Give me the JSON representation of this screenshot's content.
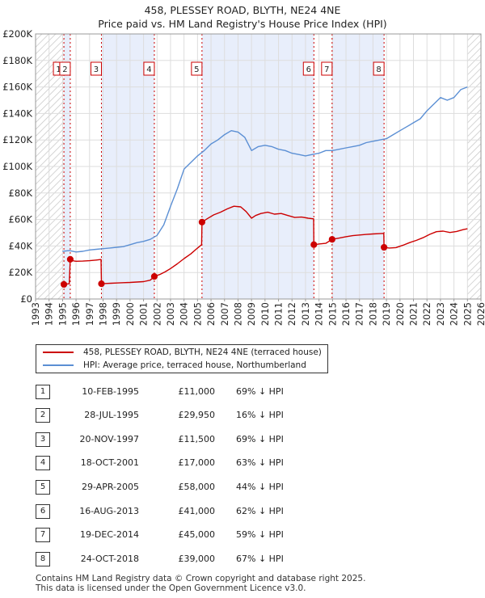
{
  "chart_data": {
    "type": "line",
    "title": "458, PLESSEY ROAD, BLYTH, NE24 4NE",
    "subtitle": "Price paid vs. HM Land Registry's House Price Index (HPI)",
    "xlabel": "",
    "ylabel": "",
    "xlim": [
      1993,
      2026
    ],
    "ylim": [
      0,
      200000
    ],
    "x_ticks": [
      "1993",
      "1994",
      "1995",
      "1996",
      "1997",
      "1998",
      "1999",
      "2000",
      "2001",
      "2002",
      "2003",
      "2004",
      "2005",
      "2006",
      "2007",
      "2008",
      "2009",
      "2010",
      "2011",
      "2012",
      "2013",
      "2014",
      "2015",
      "2016",
      "2017",
      "2018",
      "2019",
      "2020",
      "2021",
      "2022",
      "2023",
      "2024",
      "2025",
      "2026"
    ],
    "y_ticks": [
      {
        "value": 0,
        "label": "£0"
      },
      {
        "value": 20000,
        "label": "£20K"
      },
      {
        "value": 40000,
        "label": "£40K"
      },
      {
        "value": 60000,
        "label": "£60K"
      },
      {
        "value": 80000,
        "label": "£80K"
      },
      {
        "value": 100000,
        "label": "£100K"
      },
      {
        "value": 120000,
        "label": "£120K"
      },
      {
        "value": 140000,
        "label": "£140K"
      },
      {
        "value": 160000,
        "label": "£160K"
      },
      {
        "value": 180000,
        "label": "£180K"
      },
      {
        "value": 200000,
        "label": "£200K"
      }
    ],
    "hatched_ranges": [
      [
        1993,
        1995.1
      ],
      [
        2025.0,
        2026
      ]
    ],
    "highlight_ranges": [
      [
        1995.1,
        1995.57
      ],
      [
        1997.88,
        2001.8
      ],
      [
        2005.33,
        2013.62
      ],
      [
        2014.97,
        2018.82
      ]
    ],
    "series": [
      {
        "name": "458, PLESSEY ROAD, BLYTH, NE24 4NE (terraced house)",
        "color": "#cc0000",
        "x": [
          1995.1,
          1995.3,
          1995.5,
          1995.57,
          1995.8,
          1996.0,
          1996.5,
          1997.0,
          1997.5,
          1997.85,
          1997.88,
          1998.2,
          1998.6,
          1999.0,
          1999.5,
          2000.0,
          2000.5,
          2001.0,
          2001.5,
          2001.8,
          2002.2,
          2002.6,
          2003.0,
          2003.5,
          2004.0,
          2004.5,
          2005.0,
          2005.3,
          2005.33,
          2005.7,
          2006.2,
          2006.7,
          2007.2,
          2007.7,
          2008.2,
          2008.6,
          2009.0,
          2009.3,
          2009.7,
          2010.2,
          2010.7,
          2011.2,
          2011.7,
          2012.2,
          2012.7,
          2013.2,
          2013.6,
          2013.62,
          2014.0,
          2014.5,
          2014.97,
          2015.5,
          2016.0,
          2016.5,
          2017.0,
          2017.5,
          2018.0,
          2018.5,
          2018.8,
          2018.82,
          2019.2,
          2019.7,
          2020.2,
          2020.7,
          2021.2,
          2021.7,
          2022.2,
          2022.7,
          2023.2,
          2023.7,
          2024.2,
          2024.7,
          2025.0
        ],
        "values": [
          11000,
          11200,
          11500,
          29950,
          28800,
          28500,
          28600,
          28900,
          29400,
          29800,
          11500,
          11700,
          11900,
          12100,
          12300,
          12500,
          12800,
          13100,
          14200,
          17000,
          18500,
          20500,
          23000,
          26500,
          30500,
          34000,
          38500,
          41000,
          58000,
          60500,
          63500,
          65500,
          68000,
          70000,
          69500,
          66000,
          61000,
          63000,
          64500,
          65500,
          64000,
          64500,
          63000,
          61500,
          61800,
          61000,
          60500,
          41000,
          41500,
          42000,
          45000,
          46000,
          47000,
          47800,
          48300,
          48700,
          49100,
          49300,
          49500,
          39000,
          38500,
          38800,
          40500,
          42500,
          44200,
          46200,
          48800,
          50800,
          51200,
          50200,
          51000,
          52400,
          53000
        ]
      },
      {
        "name": "HPI: Average price, terraced house, Northumberland",
        "color": "#5b8fd4",
        "x": [
          1995.0,
          1995.5,
          1996.0,
          1996.5,
          1997.0,
          1997.5,
          1998.0,
          1998.5,
          1999.0,
          1999.5,
          2000.0,
          2000.5,
          2001.0,
          2001.5,
          2002.0,
          2002.5,
          2003.0,
          2003.5,
          2004.0,
          2004.5,
          2005.0,
          2005.5,
          2006.0,
          2006.5,
          2007.0,
          2007.5,
          2008.0,
          2008.5,
          2009.0,
          2009.5,
          2010.0,
          2010.5,
          2011.0,
          2011.5,
          2012.0,
          2012.5,
          2013.0,
          2013.5,
          2014.0,
          2014.5,
          2015.0,
          2015.5,
          2016.0,
          2016.5,
          2017.0,
          2017.5,
          2018.0,
          2018.5,
          2019.0,
          2019.5,
          2020.0,
          2020.5,
          2021.0,
          2021.5,
          2022.0,
          2022.5,
          2023.0,
          2023.5,
          2024.0,
          2024.5,
          2025.0
        ],
        "values": [
          36000,
          36500,
          35500,
          36000,
          37000,
          37500,
          38000,
          38500,
          39000,
          39500,
          41000,
          42500,
          43500,
          45000,
          48000,
          56000,
          70000,
          83000,
          98000,
          103000,
          108000,
          112000,
          117000,
          120000,
          124000,
          127000,
          126000,
          122000,
          112000,
          115000,
          116000,
          115000,
          113000,
          112000,
          110000,
          109000,
          108000,
          109000,
          110000,
          112000,
          112000,
          113000,
          114000,
          115000,
          116000,
          118000,
          119000,
          120000,
          121000,
          124000,
          127000,
          130000,
          133000,
          136000,
          142000,
          147000,
          152000,
          150000,
          152000,
          158000,
          160000
        ]
      }
    ],
    "sale_markers": [
      {
        "label": "1",
        "x": 1995.1,
        "y": 11000
      },
      {
        "label": "2",
        "x": 1995.57,
        "y": 29950
      },
      {
        "label": "3",
        "x": 1997.88,
        "y": 11500
      },
      {
        "label": "4",
        "x": 2001.8,
        "y": 17000
      },
      {
        "label": "5",
        "x": 2005.33,
        "y": 58000
      },
      {
        "label": "6",
        "x": 2013.62,
        "y": 41000
      },
      {
        "label": "7",
        "x": 2014.97,
        "y": 45000
      },
      {
        "label": "8",
        "x": 2018.82,
        "y": 39000
      }
    ],
    "legend": [
      {
        "label": "458, PLESSEY ROAD, BLYTH, NE24 4NE (terraced house)",
        "color": "#cc0000"
      },
      {
        "label": "HPI: Average price, terraced house, Northumberland",
        "color": "#5b8fd4"
      }
    ]
  },
  "sales": [
    {
      "num": "1",
      "date": "10-FEB-1995",
      "price": "£11,000",
      "hpi": "69% ↓ HPI"
    },
    {
      "num": "2",
      "date": "28-JUL-1995",
      "price": "£29,950",
      "hpi": "16% ↓ HPI"
    },
    {
      "num": "3",
      "date": "20-NOV-1997",
      "price": "£11,500",
      "hpi": "69% ↓ HPI"
    },
    {
      "num": "4",
      "date": "18-OCT-2001",
      "price": "£17,000",
      "hpi": "63% ↓ HPI"
    },
    {
      "num": "5",
      "date": "29-APR-2005",
      "price": "£58,000",
      "hpi": "44% ↓ HPI"
    },
    {
      "num": "6",
      "date": "16-AUG-2013",
      "price": "£41,000",
      "hpi": "62% ↓ HPI"
    },
    {
      "num": "7",
      "date": "19-DEC-2014",
      "price": "£45,000",
      "hpi": "59% ↓ HPI"
    },
    {
      "num": "8",
      "date": "24-OCT-2018",
      "price": "£39,000",
      "hpi": "67% ↓ HPI"
    }
  ],
  "footer": {
    "line1": "Contains HM Land Registry data © Crown copyright and database right 2025.",
    "line2": "This data is licensed under the Open Government Licence v3.0."
  }
}
